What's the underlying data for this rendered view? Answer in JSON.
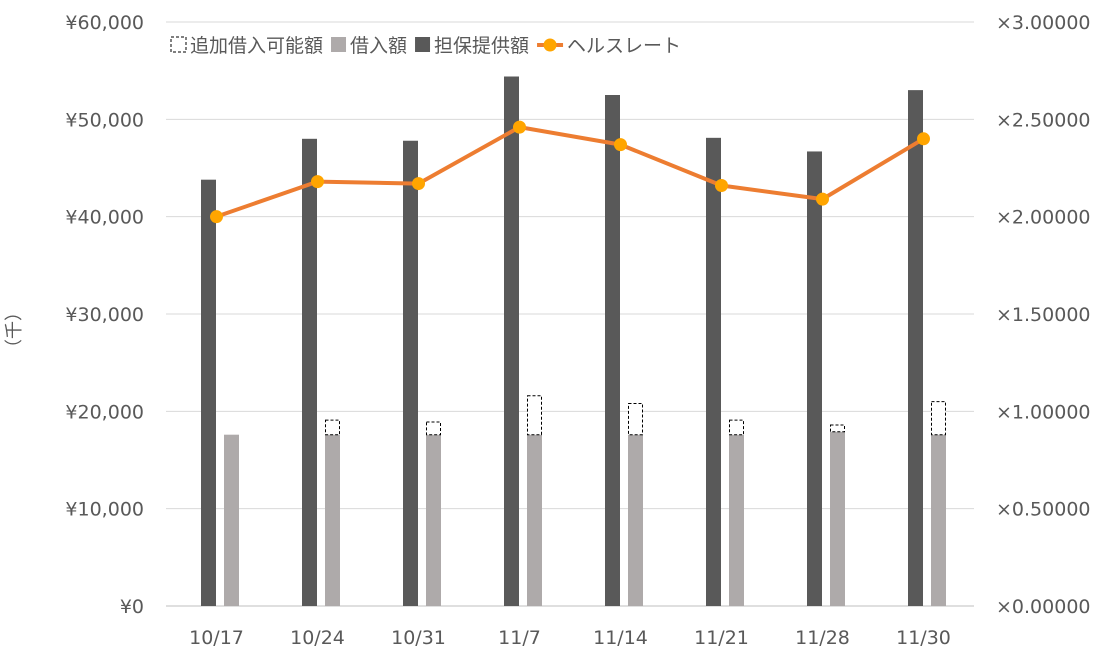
{
  "chart_data": {
    "type": "bar",
    "categories": [
      "10/17",
      "10/24",
      "10/31",
      "11/7",
      "11/14",
      "11/21",
      "11/28",
      "11/30"
    ],
    "series": [
      {
        "name": "追加借入可能額",
        "axis": "left",
        "kind": "stacked-outline",
        "stacked_on": "借入額",
        "values": [
          0,
          1500,
          1300,
          4000,
          3200,
          1500,
          700,
          3400
        ]
      },
      {
        "name": "借入額",
        "axis": "left",
        "kind": "bar",
        "values": [
          17600,
          17600,
          17600,
          17600,
          17600,
          17600,
          17900,
          17600
        ]
      },
      {
        "name": "担保提供額",
        "axis": "left",
        "kind": "bar",
        "values": [
          43800,
          48000,
          47800,
          54400,
          52500,
          48100,
          46700,
          53000
        ]
      },
      {
        "name": "ヘルスレート",
        "axis": "right",
        "kind": "line",
        "values": [
          2.0,
          2.18,
          2.17,
          2.46,
          2.37,
          2.16,
          2.09,
          2.4
        ]
      }
    ],
    "ylabel": "（千）",
    "ylim": [
      0,
      60000
    ],
    "yticks": [
      0,
      10000,
      20000,
      30000,
      40000,
      50000,
      60000
    ],
    "ytick_labels": [
      "¥0",
      "¥10,000",
      "¥20,000",
      "¥30,000",
      "¥40,000",
      "¥50,000",
      "¥60,000"
    ],
    "y2lim": [
      0,
      3.0
    ],
    "y2ticks": [
      0,
      0.5,
      1.0,
      1.5,
      2.0,
      2.5,
      3.0
    ],
    "y2tick_labels": [
      "×0.00000",
      "×0.50000",
      "×1.00000",
      "×1.50000",
      "×2.00000",
      "×2.50000",
      "×3.00000"
    ],
    "grid": true,
    "legend_position": "top",
    "colors": {
      "担保提供額": "#595959",
      "借入額": "#aeaaaa",
      "ヘルスレート": "#ed7d31",
      "marker": "#ffa500",
      "grid": "#d9d9d9",
      "text": "#595959"
    }
  }
}
